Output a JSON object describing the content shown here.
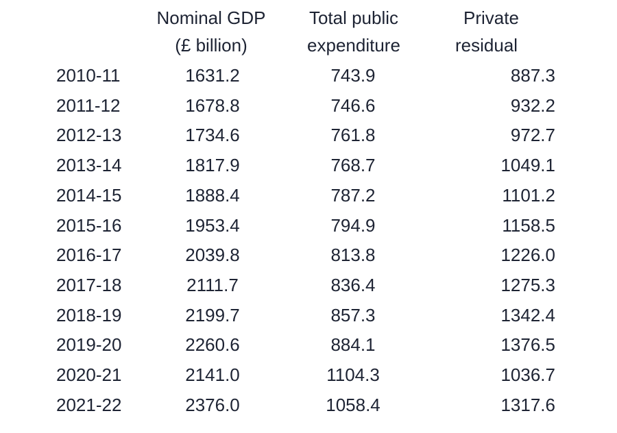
{
  "table": {
    "headers": [
      {
        "line1": "Nominal GDP",
        "line2": "(£ billion)"
      },
      {
        "line1": "Total public",
        "line2": "expenditure"
      },
      {
        "line1": "Private",
        "line2": "residual"
      }
    ],
    "rows": [
      {
        "year": "2010-11",
        "gdp": "1631.2",
        "public": "743.9",
        "private": "887.3"
      },
      {
        "year": "2011-12",
        "gdp": "1678.8",
        "public": "746.6",
        "private": "932.2"
      },
      {
        "year": "2012-13",
        "gdp": "1734.6",
        "public": "761.8",
        "private": "972.7"
      },
      {
        "year": "2013-14",
        "gdp": "1817.9",
        "public": "768.7",
        "private": "1049.1"
      },
      {
        "year": "2014-15",
        "gdp": "1888.4",
        "public": "787.2",
        "private": "1101.2"
      },
      {
        "year": "2015-16",
        "gdp": "1953.4",
        "public": "794.9",
        "private": "1158.5"
      },
      {
        "year": "2016-17",
        "gdp": "2039.8",
        "public": "813.8",
        "private": "1226.0"
      },
      {
        "year": "2017-18",
        "gdp": "2111.7",
        "public": "836.4",
        "private": "1275.3"
      },
      {
        "year": "2018-19",
        "gdp": "2199.7",
        "public": "857.3",
        "private": "1342.4"
      },
      {
        "year": "2019-20",
        "gdp": "2260.6",
        "public": "884.1",
        "private": "1376.5"
      },
      {
        "year": "2020-21",
        "gdp": "2141.0",
        "public": "1104.3",
        "private": "1036.7"
      },
      {
        "year": "2021-22",
        "gdp": "2376.0",
        "public": "1058.4",
        "private": "1317.6"
      }
    ]
  }
}
